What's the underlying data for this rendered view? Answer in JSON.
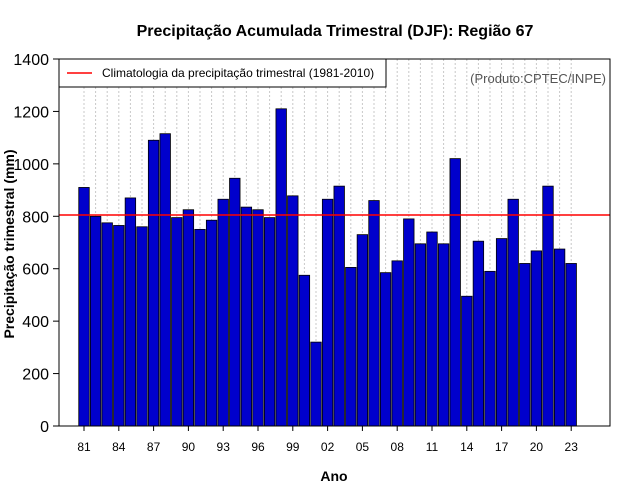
{
  "chart_data": {
    "type": "bar",
    "title": "Precipitação Acumulada Trimestral (DJF): Região 67",
    "xlabel": "Ano",
    "ylabel": "Precipitação trimestral (mm)",
    "ylim": [
      0,
      1400
    ],
    "yticks": [
      0,
      200,
      400,
      600,
      800,
      1000,
      1200,
      1400
    ],
    "xtick_labels": [
      "81",
      "84",
      "87",
      "90",
      "93",
      "96",
      "99",
      "02",
      "05",
      "08",
      "11",
      "14",
      "17",
      "20",
      "23"
    ],
    "grid": "vertical dotted",
    "credit": "(Produto:CPTEC/INPE)",
    "legend": {
      "position": "top-left",
      "entries": [
        {
          "label": "Climatologia da precipitação trimestral (1981-2010)",
          "color": "#ff0000"
        }
      ]
    },
    "reference_line": {
      "name": "Climatologia",
      "value": 805,
      "color": "#ff0000"
    },
    "bar_color": "#0000cc",
    "years": [
      1981,
      1982,
      1983,
      1984,
      1985,
      1986,
      1987,
      1988,
      1989,
      1990,
      1991,
      1992,
      1993,
      1994,
      1995,
      1996,
      1997,
      1998,
      1999,
      2000,
      2001,
      2002,
      2003,
      2004,
      2005,
      2006,
      2007,
      2008,
      2009,
      2010,
      2011,
      2012,
      2013,
      2014,
      2015,
      2016,
      2017,
      2018,
      2019,
      2020,
      2021,
      2022,
      2023
    ],
    "values": [
      910,
      800,
      775,
      765,
      870,
      760,
      1090,
      1115,
      795,
      825,
      750,
      785,
      865,
      945,
      835,
      825,
      795,
      1210,
      878,
      575,
      320,
      865,
      915,
      605,
      730,
      860,
      585,
      630,
      790,
      695,
      740,
      695,
      1020,
      495,
      705,
      590,
      715,
      865,
      620,
      668,
      915,
      675,
      620
    ]
  }
}
